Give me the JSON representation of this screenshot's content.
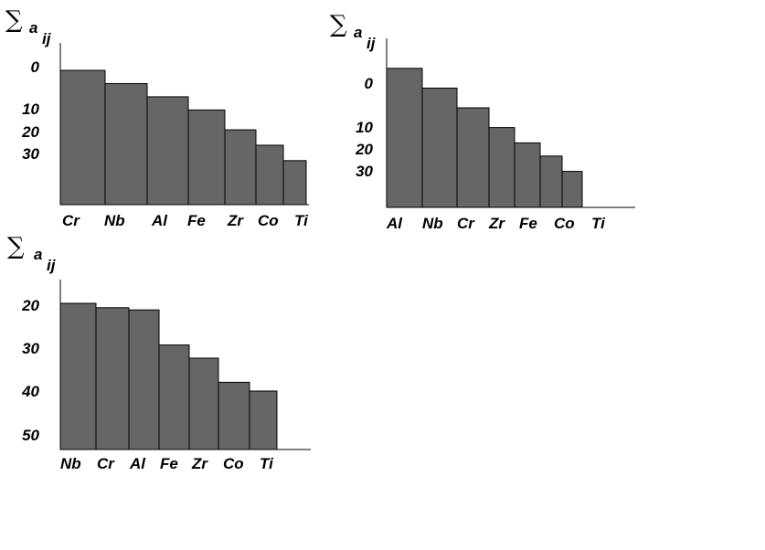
{
  "bar_color": "#666666",
  "axis_color": "#000000",
  "chart_data": [
    {
      "type": "bar",
      "ylabel": {
        "symbol": "∑",
        "main": "a",
        "sub": "ij"
      },
      "y_ticks": [
        "0",
        "10",
        "20",
        "30"
      ],
      "categories": [
        "Cr",
        "Nb",
        "Al",
        "Fe",
        "Zr",
        "Co",
        "Ti"
      ],
      "values": [
        0,
        3,
        6,
        9,
        13.5,
        17,
        20.5
      ]
    },
    {
      "type": "bar",
      "ylabel": {
        "symbol": "∑",
        "main": "a",
        "sub": "ij"
      },
      "y_ticks": [
        "0",
        "10",
        "20",
        "30"
      ],
      "categories": [
        "Al",
        "Nb",
        "Cr",
        "Zr",
        "Fe",
        "Co",
        "Ti"
      ],
      "values": [
        -4,
        0.5,
        5,
        9.5,
        13,
        16,
        19.5
      ]
    },
    {
      "type": "bar",
      "ylabel": {
        "symbol": "∑",
        "main": "a",
        "sub": "ij"
      },
      "y_ticks": [
        "20",
        "30",
        "40",
        "50"
      ],
      "categories": [
        "Nb",
        "Cr",
        "Al",
        "Fe",
        "Zr",
        "Co",
        "Ti"
      ],
      "values": [
        20,
        21,
        21.5,
        29.5,
        32.5,
        38,
        40
      ]
    }
  ]
}
